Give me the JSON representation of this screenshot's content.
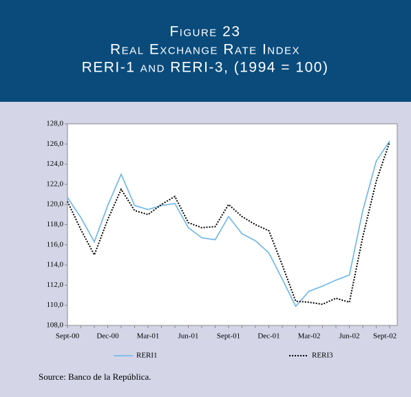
{
  "chart_data": {
    "type": "line",
    "figure_label": "Figure 23",
    "title": "Real Exchange Rate Index",
    "subtitle": "RERI-1 and RERI-3,  (1994 = 100)",
    "categories": [
      "Sept-00",
      null,
      null,
      "Dec-00",
      null,
      null,
      "Mar-01",
      null,
      null,
      "Jun-01",
      null,
      null,
      "Sept-01",
      null,
      null,
      "Dec-01",
      null,
      null,
      "Mar-02",
      null,
      null,
      "Jun-02",
      null,
      null,
      "Sept-02"
    ],
    "series": [
      {
        "name": "RERI1",
        "color": "#6ab4e8",
        "dash": false,
        "values": [
          120.7,
          118.7,
          116.3,
          119.9,
          123.0,
          119.9,
          119.5,
          119.9,
          120.1,
          117.7,
          116.7,
          116.5,
          118.8,
          117.1,
          116.4,
          115.2,
          112.6,
          109.9,
          111.4,
          111.9,
          112.5,
          113.0,
          119.4,
          124.3,
          126.3
        ]
      },
      {
        "name": "RERI3",
        "color": "#000000",
        "dash": true,
        "values": [
          120.3,
          117.5,
          115.0,
          118.5,
          121.5,
          119.4,
          119.0,
          120.0,
          120.8,
          118.2,
          117.7,
          117.8,
          120.0,
          118.8,
          118.0,
          117.4,
          114.0,
          110.4,
          110.3,
          110.1,
          110.7,
          110.3,
          116.8,
          122.3,
          126.2
        ]
      }
    ],
    "ylim": [
      108,
      128
    ],
    "yticks": [
      {
        "value": 108,
        "label": "108,0"
      },
      {
        "value": 110,
        "label": "110,0"
      },
      {
        "value": 112,
        "label": "112,0"
      },
      {
        "value": 114,
        "label": "114,0"
      },
      {
        "value": 116,
        "label": "116,0"
      },
      {
        "value": 118,
        "label": "118,0"
      },
      {
        "value": 120,
        "label": "120,0"
      },
      {
        "value": 122,
        "label": "122,0"
      },
      {
        "value": 124,
        "label": "124,0"
      },
      {
        "value": 126,
        "label": "126,0"
      },
      {
        "value": 128,
        "label": "128,0"
      }
    ],
    "source": "Source: Banco de la República."
  }
}
